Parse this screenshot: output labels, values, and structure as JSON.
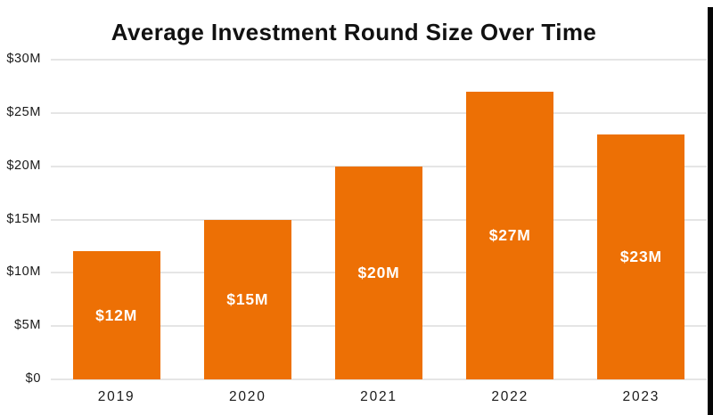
{
  "title": "Average Investment Round Size Over Time",
  "chart_data": {
    "type": "bar",
    "title": "Average Investment Round Size Over Time",
    "categories": [
      "2019",
      "2020",
      "2021",
      "2022",
      "2023"
    ],
    "values": [
      12,
      15,
      20,
      27,
      23
    ],
    "bar_labels": [
      "$12M",
      "$15M",
      "$20M",
      "$27M",
      "$23M"
    ],
    "xlabel": "",
    "ylabel": "",
    "ylim": [
      0,
      30
    ],
    "yticks": [
      0,
      5,
      10,
      15,
      20,
      25,
      30
    ],
    "ytick_labels": [
      "$0",
      "$5M",
      "$10M",
      "$15M",
      "$20M",
      "$25M",
      "$30M"
    ],
    "grid": "horizontal",
    "legend": "none",
    "bar_label_position": "center-inside",
    "colors": {
      "bar": "#ED7005",
      "bar_label_text": "#FFFFFF",
      "gridline": "#E5E5E5",
      "axis_text": "#1A1A1A",
      "title_text": "#111111",
      "background": "#FFFFFF",
      "edge_strip": "#050505"
    }
  }
}
